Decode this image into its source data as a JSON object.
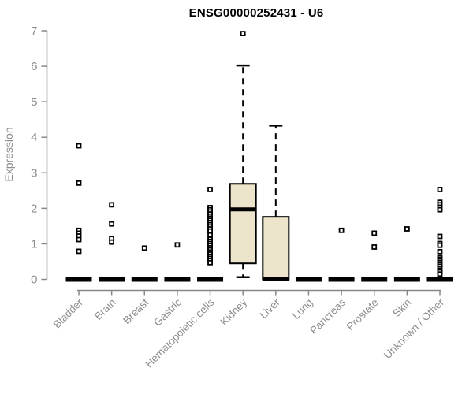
{
  "title": "ENSG00000252431 - U6",
  "colors": {
    "background": "#ffffff",
    "axis": "#888888",
    "tick_label": "#8d8d8d",
    "box_fill": "#ece5cb",
    "box_stroke": "#000000",
    "point": "#000000",
    "title_color": "#000000"
  },
  "chart_data": {
    "type": "boxplot",
    "title": "ENSG00000252431 - U6",
    "xlabel": "",
    "ylabel": "Expression",
    "ylim": [
      0,
      7
    ],
    "yticks": [
      0,
      1,
      2,
      3,
      4,
      5,
      6,
      7
    ],
    "grid": false,
    "legend": "none",
    "categories": [
      "Bladder",
      "Brain",
      "Breast",
      "Gastric",
      "Hematopoietic cells",
      "Kidney",
      "Liver",
      "Lung",
      "Pancreas",
      "Prostate",
      "Skin",
      "Unknown / Other"
    ],
    "series": [
      {
        "name": "Bladder",
        "q1": 0,
        "median": 0,
        "q3": 0,
        "whisker_low": 0,
        "whisker_high": 0,
        "outliers": [
          3.76,
          2.71,
          1.38,
          1.3,
          1.22,
          1.12,
          0.79
        ]
      },
      {
        "name": "Brain",
        "q1": 0,
        "median": 0,
        "q3": 0,
        "whisker_low": 0,
        "whisker_high": 0,
        "outliers": [
          2.1,
          1.56,
          1.15,
          1.05
        ]
      },
      {
        "name": "Breast",
        "q1": 0,
        "median": 0,
        "q3": 0,
        "whisker_low": 0,
        "whisker_high": 0,
        "outliers": [
          0.88
        ]
      },
      {
        "name": "Gastric",
        "q1": 0,
        "median": 0,
        "q3": 0,
        "whisker_low": 0,
        "whisker_high": 0,
        "outliers": [
          0.97
        ]
      },
      {
        "name": "Hematopoietic cells",
        "q1": 0,
        "median": 0,
        "q3": 0,
        "whisker_low": 0,
        "whisker_high": 0,
        "outliers": [
          2.53,
          2.02,
          1.96,
          1.9,
          1.84,
          1.78,
          1.72,
          1.66,
          1.6,
          1.54,
          1.48,
          1.42,
          1.36,
          1.25,
          1.13,
          1.07,
          1.01,
          0.95,
          0.89,
          0.83,
          0.77,
          0.71,
          0.65,
          0.59,
          0.53,
          0.47
        ]
      },
      {
        "name": "Kidney",
        "q1": 0.45,
        "median": 1.97,
        "q3": 2.69,
        "whisker_low": 0.06,
        "whisker_high": 6.02,
        "outliers": [
          6.92
        ]
      },
      {
        "name": "Liver",
        "q1": 0,
        "median": 0,
        "q3": 1.76,
        "whisker_low": 0,
        "whisker_high": 4.33,
        "outliers": []
      },
      {
        "name": "Lung",
        "q1": 0,
        "median": 0,
        "q3": 0,
        "whisker_low": 0,
        "whisker_high": 0,
        "outliers": []
      },
      {
        "name": "Pancreas",
        "q1": 0,
        "median": 0,
        "q3": 0,
        "whisker_low": 0,
        "whisker_high": 0,
        "outliers": [
          1.38
        ]
      },
      {
        "name": "Prostate",
        "q1": 0,
        "median": 0,
        "q3": 0,
        "whisker_low": 0,
        "whisker_high": 0,
        "outliers": [
          1.3,
          0.91
        ]
      },
      {
        "name": "Skin",
        "q1": 0,
        "median": 0,
        "q3": 0,
        "whisker_low": 0,
        "whisker_high": 0,
        "outliers": [
          1.42
        ]
      },
      {
        "name": "Unknown / Other",
        "q1": 0,
        "median": 0,
        "q3": 0,
        "whisker_low": 0,
        "whisker_high": 0,
        "outliers": [
          2.53,
          2.17,
          2.1,
          2.03,
          1.96,
          1.21,
          1.01,
          0.96,
          0.78,
          0.62,
          0.57,
          0.52,
          0.47,
          0.42,
          0.37,
          0.31,
          0.26,
          0.21,
          0.15
        ]
      }
    ]
  }
}
